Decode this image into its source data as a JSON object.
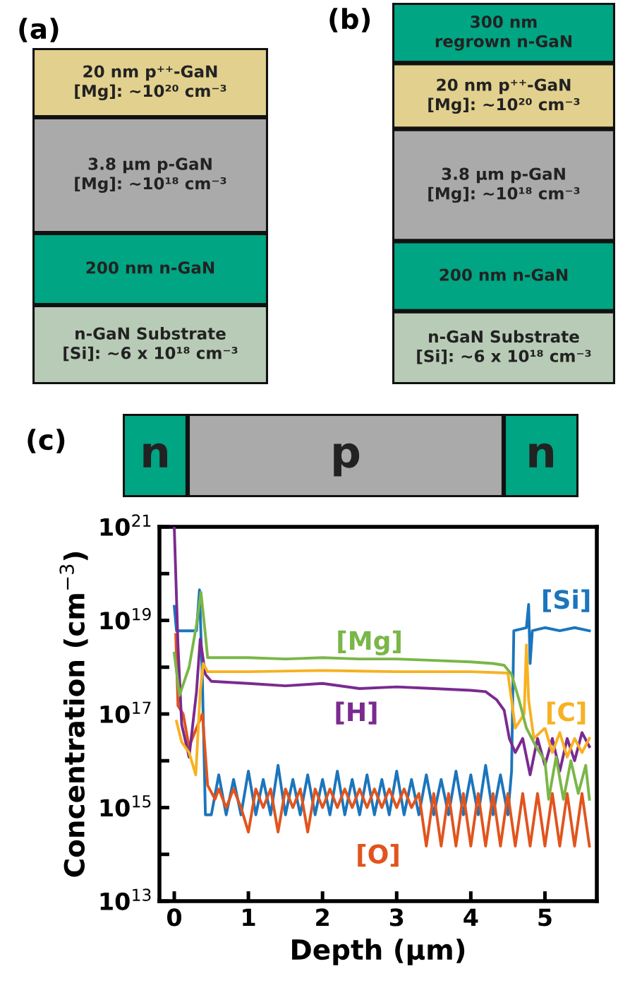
{
  "chart_data": [
    {
      "type": "other",
      "title": "(a)",
      "annotations": [
        "20 nm p⁺⁺-GaN\n[Mg]: ~10²⁰ cm⁻³",
        "3.8 µm p-GaN\n[Mg]: ~10¹⁸ cm⁻³",
        "200 nm n-GaN",
        "n-GaN Substrate\n[Si]: ~6 x 10¹⁸ cm⁻³"
      ],
      "colors": [
        "#e2d08e",
        "#aaaaaa",
        "#00a583",
        "#b8cbb6"
      ]
    },
    {
      "type": "other",
      "title": "(b)",
      "annotations": [
        "300 nm\nregrown n-GaN",
        "20 nm p⁺⁺-GaN\n[Mg]: ~10²⁰ cm⁻³",
        "3.8 µm p-GaN\n[Mg]: ~10¹⁸ cm⁻³",
        "200 nm n-GaN",
        "n-GaN Substrate\n[Si]: ~6 x 10¹⁸ cm⁻³"
      ],
      "colors": [
        "#00a583",
        "#e2d08e",
        "#aaaaaa",
        "#00a583",
        "#b8cbb6"
      ]
    },
    {
      "type": "other",
      "title": "(c)",
      "annotations": [
        "n",
        "p",
        "n"
      ],
      "colors": [
        "#00a583",
        "#aaaaaa",
        "#00a583"
      ]
    },
    {
      "type": "line",
      "xlabel": "Depth (µm)",
      "ylabel": "Concentration (cm$^{−3}$)",
      "log": "y",
      "grid": false,
      "legend": false,
      "xlim": [
        -0.2,
        5.7
      ],
      "xticks": [
        0,
        1,
        2,
        3,
        4,
        5
      ],
      "ylim": [
        10000000000000.0,
        1e+21
      ],
      "yticks": [
        {
          "value": 10000000000000.0,
          "label": "10$^{13}$"
        },
        {
          "value": 100000000000000.0,
          "label": null
        },
        {
          "value": 1000000000000000.0,
          "label": "10$^{15}$"
        },
        {
          "value": 1e+16,
          "label": null
        },
        {
          "value": 1e+17,
          "label": "10$^{17}$"
        },
        {
          "value": 1e+18,
          "label": null
        },
        {
          "value": 1e+19,
          "label": "10$^{19}$"
        },
        {
          "value": 1e+20,
          "label": null
        },
        {
          "value": 1e+21,
          "label": "10$^{21}$"
        }
      ],
      "series": [
        {
          "name": "[Si]",
          "color": "#1b75bc",
          "x": [
            0,
            0.03,
            0.3,
            0.34,
            0.38,
            0.42,
            0.5,
            0.6,
            0.7,
            0.8,
            0.9,
            1.0,
            1.1,
            1.2,
            1.3,
            1.4,
            1.5,
            1.6,
            1.7,
            1.8,
            1.9,
            2.0,
            2.1,
            2.2,
            2.3,
            2.4,
            2.5,
            2.6,
            2.7,
            2.8,
            2.9,
            3.0,
            3.1,
            3.2,
            3.3,
            3.4,
            3.5,
            3.6,
            3.7,
            3.8,
            3.9,
            4.0,
            4.1,
            4.2,
            4.3,
            4.4,
            4.5,
            4.55,
            4.58,
            4.75,
            4.78,
            4.8,
            4.83,
            5.0,
            5.2,
            5.4,
            5.6
          ],
          "values": [
            2e+19,
            6e+18,
            6e+18,
            4.5e+19,
            5e+17,
            700000000000000.0,
            700000000000000.0,
            5000000000000000.0,
            700000000000000.0,
            4000000000000000.0,
            700000000000000.0,
            6000000000000000.0,
            700000000000000.0,
            4000000000000000.0,
            700000000000000.0,
            8000000000000000.0,
            700000000000000.0,
            4000000000000000.0,
            700000000000000.0,
            5000000000000000.0,
            700000000000000.0,
            4000000000000000.0,
            700000000000000.0,
            6000000000000000.0,
            700000000000000.0,
            4000000000000000.0,
            700000000000000.0,
            5000000000000000.0,
            700000000000000.0,
            4000000000000000.0,
            700000000000000.0,
            6000000000000000.0,
            700000000000000.0,
            4000000000000000.0,
            700000000000000.0,
            5000000000000000.0,
            700000000000000.0,
            4000000000000000.0,
            700000000000000.0,
            6000000000000000.0,
            700000000000000.0,
            5000000000000000.0,
            700000000000000.0,
            8000000000000000.0,
            700000000000000.0,
            5000000000000000.0,
            700000000000000.0,
            6000000000000000.0,
            6e+18,
            7e+18,
            2.2e+19,
            1.2e+18,
            6e+18,
            7e+18,
            6e+18,
            7e+18,
            6e+18
          ]
        },
        {
          "name": "[O]",
          "color": "#e1541d",
          "x": [
            0.02,
            0.05,
            0.12,
            0.2,
            0.3,
            0.38,
            0.45,
            0.55,
            0.6,
            0.7,
            0.8,
            0.9,
            1.0,
            1.1,
            1.2,
            1.3,
            1.4,
            1.5,
            1.6,
            1.7,
            1.8,
            1.9,
            2.0,
            2.1,
            2.2,
            2.3,
            2.4,
            2.5,
            2.6,
            2.7,
            2.8,
            2.9,
            3.0,
            3.1,
            3.2,
            3.3,
            3.4,
            3.5,
            3.6,
            3.7,
            3.8,
            3.9,
            4.0,
            4.1,
            4.2,
            4.3,
            4.4,
            4.5,
            4.6,
            4.7,
            4.8,
            4.9,
            5.0,
            5.1,
            5.2,
            5.3,
            5.4,
            5.5,
            5.6
          ],
          "values": [
            5e+18,
            1.5e+17,
            1e+17,
            2e+16,
            5e+16,
            1e+17,
            3000000000000000.0,
            1500000000000000.0,
            2500000000000000.0,
            1000000000000000.0,
            2500000000000000.0,
            1000000000000000.0,
            300000000000000.0,
            2500000000000000.0,
            1000000000000000.0,
            2500000000000000.0,
            300000000000000.0,
            2500000000000000.0,
            1000000000000000.0,
            2500000000000000.0,
            300000000000000.0,
            2500000000000000.0,
            1000000000000000.0,
            2500000000000000.0,
            1000000000000000.0,
            2500000000000000.0,
            1000000000000000.0,
            2500000000000000.0,
            1000000000000000.0,
            2500000000000000.0,
            1000000000000000.0,
            2500000000000000.0,
            1000000000000000.0,
            2500000000000000.0,
            1000000000000000.0,
            2000000000000000.0,
            150000000000000.0,
            2000000000000000.0,
            150000000000000.0,
            2000000000000000.0,
            150000000000000.0,
            2000000000000000.0,
            150000000000000.0,
            2000000000000000.0,
            150000000000000.0,
            2000000000000000.0,
            150000000000000.0,
            2000000000000000.0,
            150000000000000.0,
            2000000000000000.0,
            150000000000000.0,
            2000000000000000.0,
            150000000000000.0,
            2000000000000000.0,
            150000000000000.0,
            2000000000000000.0,
            150000000000000.0,
            2000000000000000.0,
            150000000000000.0
          ]
        },
        {
          "name": "[H]",
          "color": "#7b2a90",
          "x": [
            0.0,
            0.05,
            0.1,
            0.2,
            0.3,
            0.35,
            0.42,
            0.5,
            1.0,
            1.5,
            2.0,
            2.5,
            3.0,
            3.5,
            4.0,
            4.2,
            4.35,
            4.45,
            4.52,
            4.6,
            4.7,
            4.8,
            4.9,
            5.0,
            5.1,
            5.2,
            5.3,
            5.4,
            5.5,
            5.6
          ],
          "values": [
            1e+21,
            3e+18,
            6e+16,
            1.2e+16,
            3e+17,
            4e+18,
            7e+17,
            5e+17,
            4.5e+17,
            4e+17,
            4.5e+17,
            3.5e+17,
            3.8e+17,
            3.5e+17,
            3.2e+17,
            3e+17,
            2e+17,
            1.2e+17,
            3e+16,
            1.5e+16,
            3e+16,
            5000000000000000.0,
            3e+16,
            8000000000000000.0,
            3e+16,
            6000000000000000.0,
            3e+16,
            1e+16,
            4e+16,
            2e+16
          ]
        },
        {
          "name": "[C]",
          "color": "#f6b221",
          "x": [
            0.03,
            0.1,
            0.2,
            0.29,
            0.35,
            0.39,
            0.45,
            1.0,
            2.0,
            3.0,
            4.0,
            4.5,
            4.55,
            4.6,
            4.72,
            4.75,
            4.78,
            4.85,
            5.0,
            5.1,
            5.2,
            5.3,
            5.4,
            5.5,
            5.6
          ],
          "values": [
            7e+16,
            2.5e+16,
            1.5e+16,
            5000000000000000.0,
            3e+17,
            1.2e+18,
            8e+17,
            8e+17,
            8.5e+17,
            8e+17,
            8e+17,
            7.5e+17,
            2e+17,
            5e+16,
            1e+17,
            3e+18,
            2e+17,
            3e+16,
            5e+16,
            1.5e+16,
            4e+16,
            1.2e+16,
            3e+16,
            1.5e+16,
            3e+16
          ]
        },
        {
          "name": "[Mg]",
          "color": "#7ab648",
          "x": [
            0,
            0.07,
            0.2,
            0.3,
            0.36,
            0.42,
            0.45,
            1.0,
            1.5,
            2.0,
            2.5,
            3.0,
            3.5,
            4.0,
            4.3,
            4.45,
            4.55,
            4.65,
            4.75,
            4.88,
            5.0,
            5.05,
            5.15,
            5.25,
            5.35,
            5.45,
            5.55,
            5.6
          ],
          "values": [
            2e+18,
            2.5e+17,
            1e+18,
            8e+18,
            4e+19,
            5e+18,
            1.6e+18,
            1.6e+18,
            1.5e+18,
            1.6e+18,
            1.5e+18,
            1.5e+18,
            1.4e+18,
            1.3e+18,
            1.2e+18,
            1.1e+18,
            7e+17,
            2e+17,
            5e+16,
            2e+16,
            1e+16,
            1500000000000000.0,
            1.2e+16,
            1500000000000000.0,
            1e+16,
            2000000000000000.0,
            8000000000000000.0,
            1500000000000000.0
          ]
        }
      ]
    }
  ]
}
